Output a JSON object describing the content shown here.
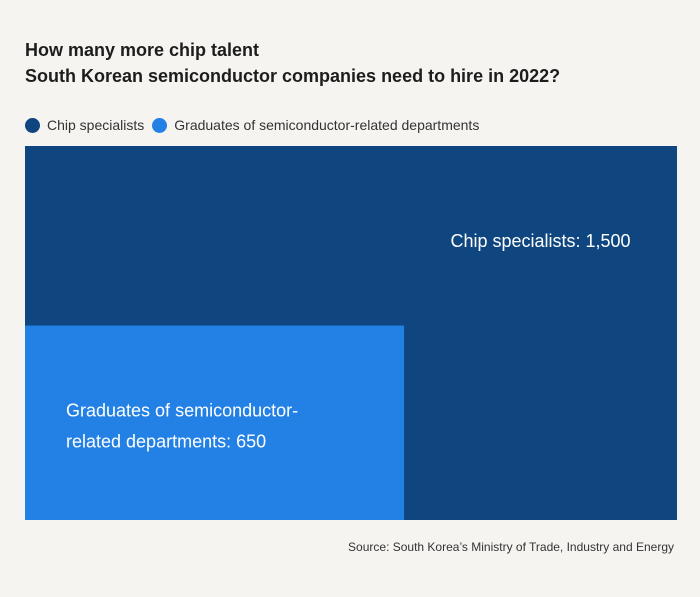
{
  "title": {
    "line1": "How many more chip talent",
    "line2": "South Korean semiconductor companies need to hire in 2022?"
  },
  "legend": [
    {
      "label": "Chip specialists",
      "color": "#0f4680"
    },
    {
      "label": "Graduates of semiconductor-related departments",
      "color": "#2381e6"
    }
  ],
  "chart_data": {
    "type": "treemap",
    "title": "How many more chip talent South Korean semiconductor companies need to hire in 2022?",
    "categories": [
      "Chip specialists",
      "Graduates of semiconductor-related departments"
    ],
    "values": [
      1500,
      650
    ],
    "colors": [
      "#0f4680",
      "#2381e6"
    ],
    "labels": [
      [
        "Chip specialists: 1,500"
      ],
      [
        "Graduates of semiconductor-",
        "related departments: 650"
      ]
    ],
    "legend_position": "top-left"
  },
  "source": "Source: South Korea’s Ministry of Trade, Industry and Energy"
}
